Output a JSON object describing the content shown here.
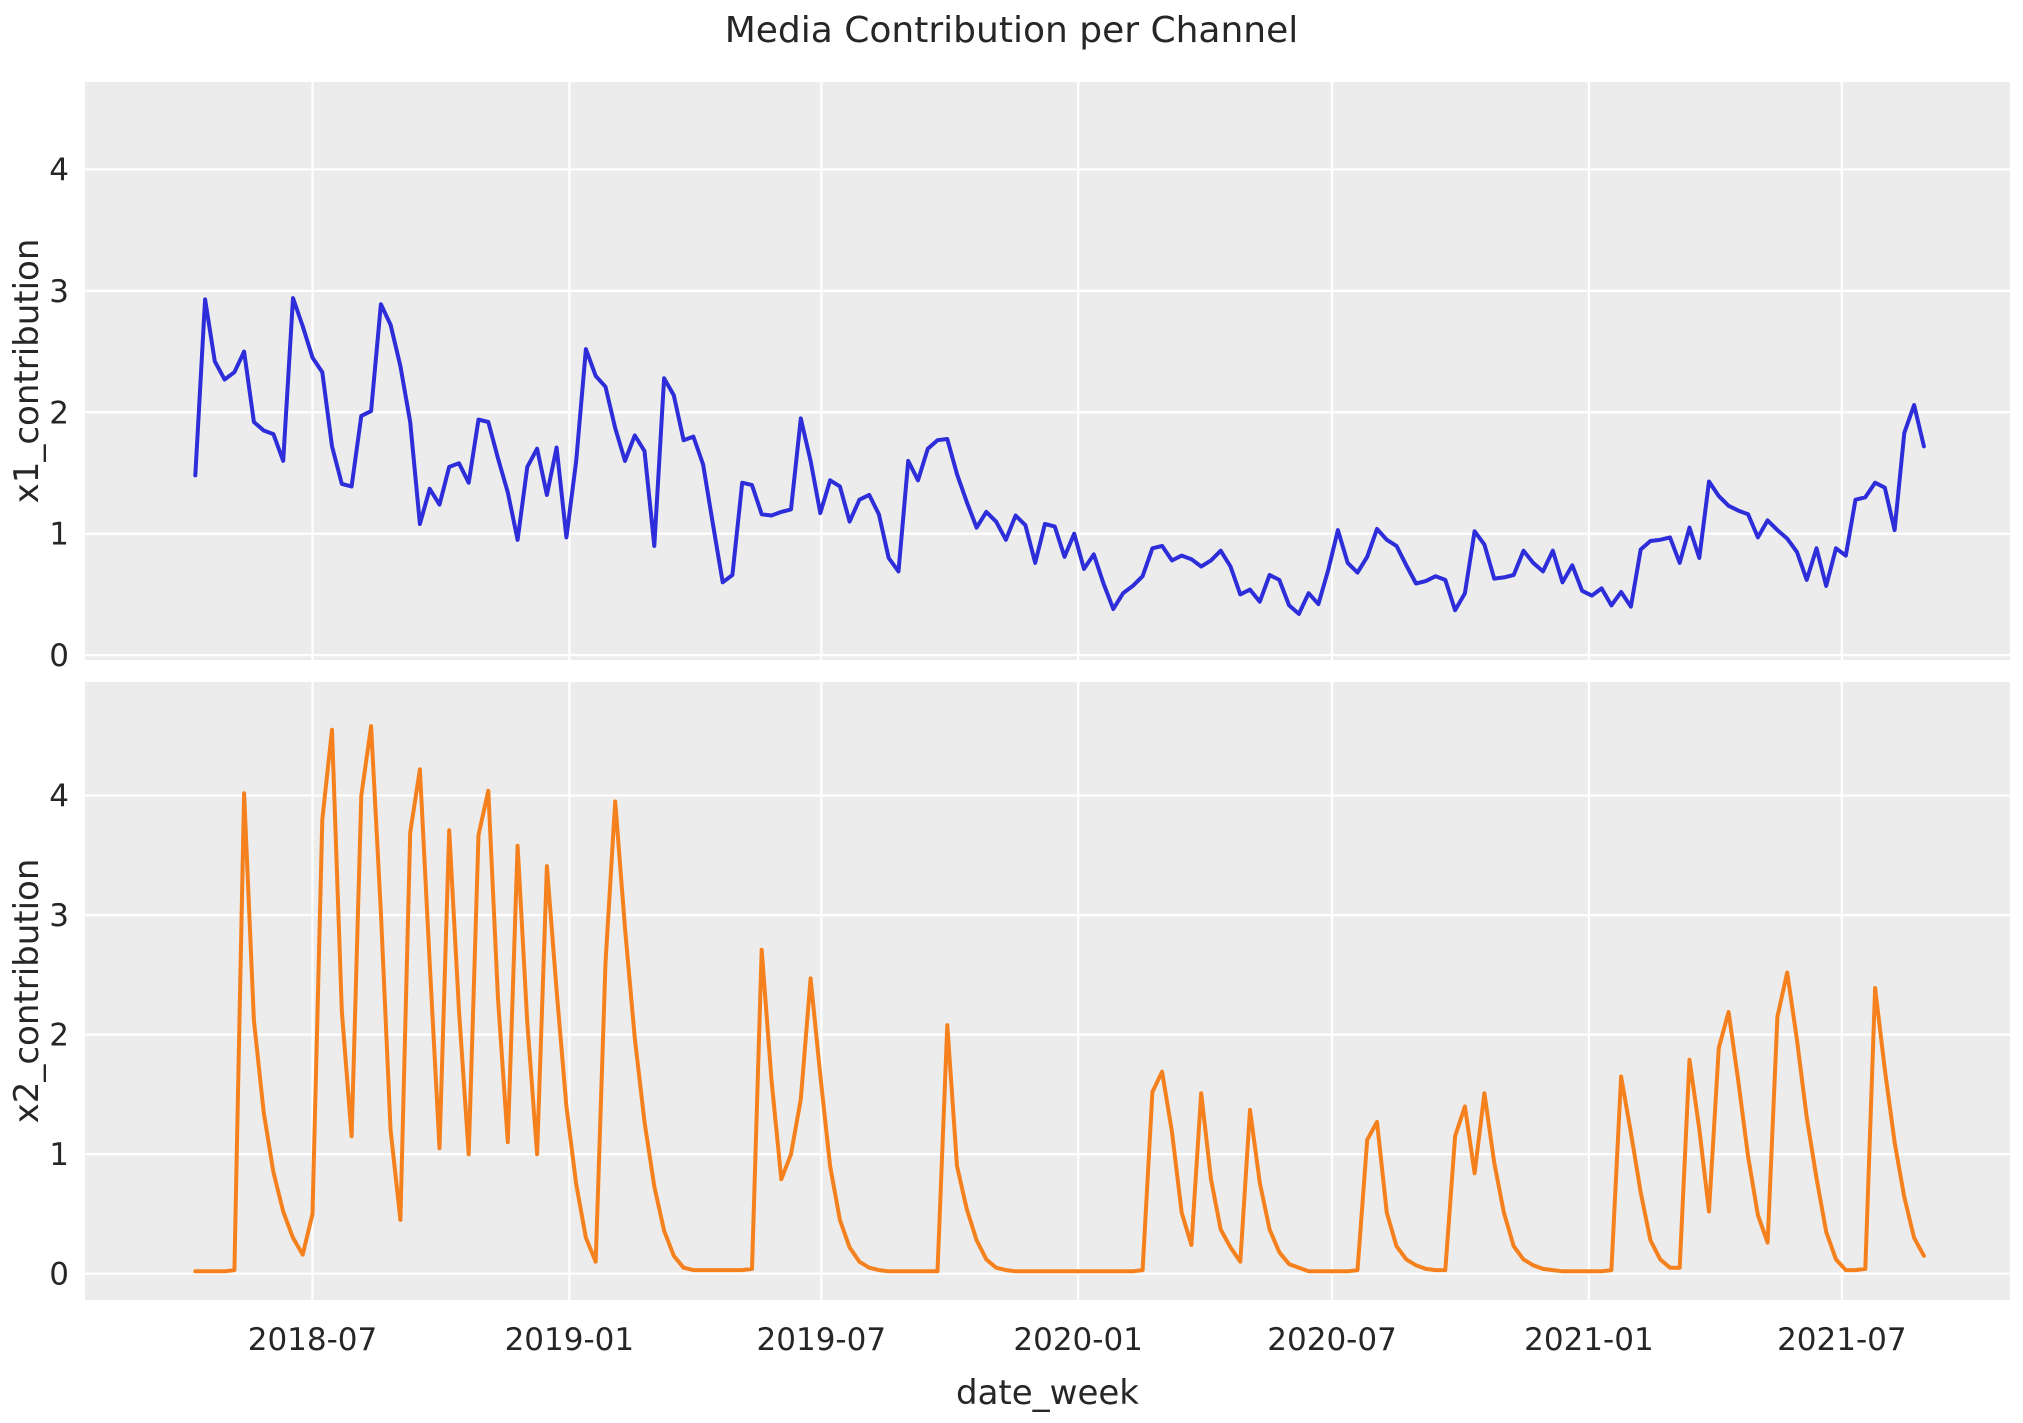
{
  "chart_data": {
    "type": "line",
    "title": "Media Contribution per Channel",
    "xlabel": "date_week",
    "x_axis": {
      "start_date": "2018-04-08",
      "frequency": "weekly",
      "n_points": 178,
      "tick_labels": [
        "2018-07",
        "2019-01",
        "2019-07",
        "2020-01",
        "2020-07",
        "2021-01",
        "2021-07"
      ],
      "tick_week_index": [
        12.0,
        38.3,
        64.1,
        90.4,
        116.4,
        142.7,
        168.6
      ]
    },
    "style": {
      "plot_background": "#ececec",
      "gridline_color": "#ffffff",
      "text_color": "#262626",
      "grid": true,
      "legend": false
    },
    "subplots": [
      {
        "ylabel": "x1_contribution",
        "series_name": "x1_contribution",
        "color": "#2d2dd9",
        "yticks": [
          0,
          1,
          2,
          3,
          4
        ],
        "ylim": [
          -0.04,
          4.72
        ],
        "values": [
          1.48,
          2.93,
          2.42,
          2.27,
          2.33,
          2.5,
          1.92,
          1.85,
          1.82,
          1.6,
          2.94,
          2.71,
          2.45,
          2.33,
          1.72,
          1.41,
          1.39,
          1.97,
          2.01,
          2.89,
          2.72,
          2.38,
          1.92,
          1.08,
          1.37,
          1.24,
          1.55,
          1.58,
          1.42,
          1.94,
          1.92,
          1.62,
          1.34,
          0.95,
          1.55,
          1.7,
          1.32,
          1.71,
          0.97,
          1.6,
          2.52,
          2.3,
          2.21,
          1.87,
          1.6,
          1.81,
          1.68,
          0.9,
          2.28,
          2.14,
          1.77,
          1.8,
          1.57,
          1.08,
          0.6,
          0.66,
          1.42,
          1.4,
          1.16,
          1.15,
          1.18,
          1.2,
          1.95,
          1.6,
          1.17,
          1.44,
          1.39,
          1.1,
          1.28,
          1.32,
          1.16,
          0.8,
          0.69,
          1.6,
          1.44,
          1.7,
          1.77,
          1.78,
          1.49,
          1.26,
          1.05,
          1.18,
          1.1,
          0.95,
          1.15,
          1.07,
          0.76,
          1.08,
          1.06,
          0.81,
          1.0,
          0.71,
          0.83,
          0.59,
          0.38,
          0.51,
          0.57,
          0.65,
          0.88,
          0.9,
          0.78,
          0.82,
          0.79,
          0.73,
          0.78,
          0.86,
          0.73,
          0.5,
          0.54,
          0.44,
          0.66,
          0.62,
          0.41,
          0.34,
          0.51,
          0.42,
          0.7,
          1.03,
          0.76,
          0.68,
          0.81,
          1.04,
          0.95,
          0.9,
          0.74,
          0.59,
          0.61,
          0.65,
          0.62,
          0.37,
          0.51,
          1.02,
          0.91,
          0.63,
          0.64,
          0.66,
          0.86,
          0.76,
          0.69,
          0.86,
          0.6,
          0.74,
          0.53,
          0.49,
          0.55,
          0.41,
          0.52,
          0.4,
          0.87,
          0.94,
          0.95,
          0.97,
          0.76,
          1.05,
          0.8,
          1.43,
          1.31,
          1.23,
          1.19,
          1.16,
          0.97,
          1.11,
          1.03,
          0.96,
          0.85,
          0.62,
          0.88,
          0.57,
          0.88,
          0.82,
          1.28,
          1.3,
          1.42,
          1.38,
          1.03,
          1.83,
          2.06,
          1.72
        ]
      },
      {
        "ylabel": "x2_contribution",
        "series_name": "x2_contribution",
        "color": "#f5811e",
        "yticks": [
          0,
          1,
          2,
          3,
          4
        ],
        "ylim": [
          -0.22,
          4.95
        ],
        "values": [
          0.02,
          0.02,
          0.02,
          0.02,
          0.03,
          4.02,
          2.12,
          1.35,
          0.85,
          0.52,
          0.3,
          0.16,
          0.5,
          3.8,
          4.55,
          2.2,
          1.15,
          4.0,
          4.58,
          3.02,
          1.2,
          0.45,
          3.69,
          4.22,
          2.6,
          1.05,
          3.71,
          2.2,
          1.0,
          3.67,
          4.04,
          2.3,
          1.1,
          3.58,
          2.1,
          1.0,
          3.41,
          2.37,
          1.4,
          0.75,
          0.3,
          0.1,
          2.6,
          3.95,
          2.89,
          1.97,
          1.27,
          0.73,
          0.36,
          0.15,
          0.05,
          0.03,
          0.03,
          0.03,
          0.03,
          0.03,
          0.03,
          0.04,
          2.71,
          1.62,
          0.79,
          1.0,
          1.46,
          2.47,
          1.66,
          0.9,
          0.45,
          0.22,
          0.1,
          0.05,
          0.03,
          0.02,
          0.02,
          0.02,
          0.02,
          0.02,
          0.02,
          2.08,
          0.9,
          0.54,
          0.28,
          0.12,
          0.05,
          0.03,
          0.02,
          0.02,
          0.02,
          0.02,
          0.02,
          0.02,
          0.02,
          0.02,
          0.02,
          0.02,
          0.02,
          0.02,
          0.02,
          0.03,
          1.52,
          1.69,
          1.19,
          0.51,
          0.24,
          1.51,
          0.79,
          0.37,
          0.22,
          0.1,
          1.37,
          0.76,
          0.37,
          0.18,
          0.08,
          0.05,
          0.02,
          0.02,
          0.02,
          0.02,
          0.02,
          0.03,
          1.12,
          1.27,
          0.51,
          0.23,
          0.12,
          0.07,
          0.04,
          0.03,
          0.03,
          1.15,
          1.4,
          0.84,
          1.51,
          0.93,
          0.51,
          0.23,
          0.12,
          0.07,
          0.04,
          0.03,
          0.02,
          0.02,
          0.02,
          0.02,
          0.02,
          0.03,
          1.65,
          1.18,
          0.68,
          0.28,
          0.12,
          0.05,
          0.05,
          1.79,
          1.21,
          0.52,
          1.89,
          2.19,
          1.61,
          0.98,
          0.49,
          0.26,
          2.15,
          2.52,
          1.96,
          1.31,
          0.8,
          0.35,
          0.12,
          0.03,
          0.03,
          0.04,
          2.39,
          1.71,
          1.1,
          0.64,
          0.3,
          0.15
        ]
      }
    ]
  }
}
